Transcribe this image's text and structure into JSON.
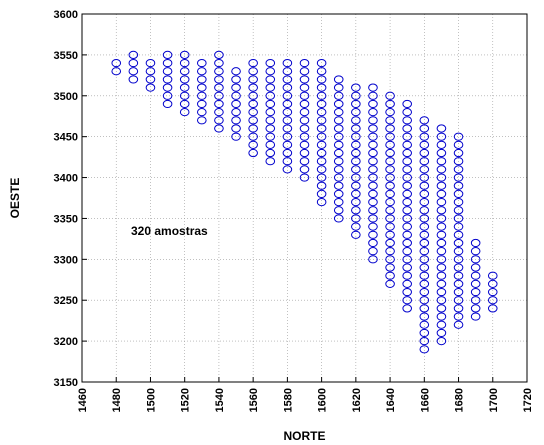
{
  "chart_data": {
    "type": "scatter",
    "title": "",
    "xlabel": "NORTE",
    "ylabel": "OESTE",
    "xlim": [
      1460,
      1720
    ],
    "ylim": [
      3150,
      3600
    ],
    "x_ticks": [
      1460,
      1480,
      1500,
      1520,
      1540,
      1560,
      1580,
      1600,
      1620,
      1640,
      1660,
      1680,
      1700,
      1720
    ],
    "y_ticks": [
      3150,
      3200,
      3250,
      3300,
      3350,
      3400,
      3450,
      3500,
      3550,
      3600
    ],
    "grid": true,
    "marker": "open-circle",
    "marker_color": "#0000cc",
    "annotation": "320 amostras",
    "point_columns": [
      {
        "x": 1480,
        "y_max": 3540,
        "y_min": 3530
      },
      {
        "x": 1490,
        "y_max": 3550,
        "y_min": 3520
      },
      {
        "x": 1500,
        "y_max": 3540,
        "y_min": 3510
      },
      {
        "x": 1510,
        "y_max": 3550,
        "y_min": 3490
      },
      {
        "x": 1520,
        "y_max": 3550,
        "y_min": 3480
      },
      {
        "x": 1530,
        "y_max": 3540,
        "y_min": 3470
      },
      {
        "x": 1540,
        "y_max": 3550,
        "y_min": 3460
      },
      {
        "x": 1550,
        "y_max": 3530,
        "y_min": 3450
      },
      {
        "x": 1560,
        "y_max": 3540,
        "y_min": 3430
      },
      {
        "x": 1570,
        "y_max": 3540,
        "y_min": 3420
      },
      {
        "x": 1580,
        "y_max": 3540,
        "y_min": 3410
      },
      {
        "x": 1590,
        "y_max": 3540,
        "y_min": 3400
      },
      {
        "x": 1600,
        "y_max": 3540,
        "y_min": 3370
      },
      {
        "x": 1610,
        "y_max": 3520,
        "y_min": 3350
      },
      {
        "x": 1620,
        "y_max": 3510,
        "y_min": 3330
      },
      {
        "x": 1630,
        "y_max": 3510,
        "y_min": 3300
      },
      {
        "x": 1640,
        "y_max": 3500,
        "y_min": 3270
      },
      {
        "x": 1650,
        "y_max": 3490,
        "y_min": 3240
      },
      {
        "x": 1660,
        "y_max": 3470,
        "y_min": 3190
      },
      {
        "x": 1670,
        "y_max": 3460,
        "y_min": 3200
      },
      {
        "x": 1680,
        "y_max": 3450,
        "y_min": 3220
      },
      {
        "x": 1690,
        "y_max": 3320,
        "y_min": 3230
      },
      {
        "x": 1700,
        "y_max": 3280,
        "y_min": 3240
      }
    ],
    "y_step": 10
  }
}
